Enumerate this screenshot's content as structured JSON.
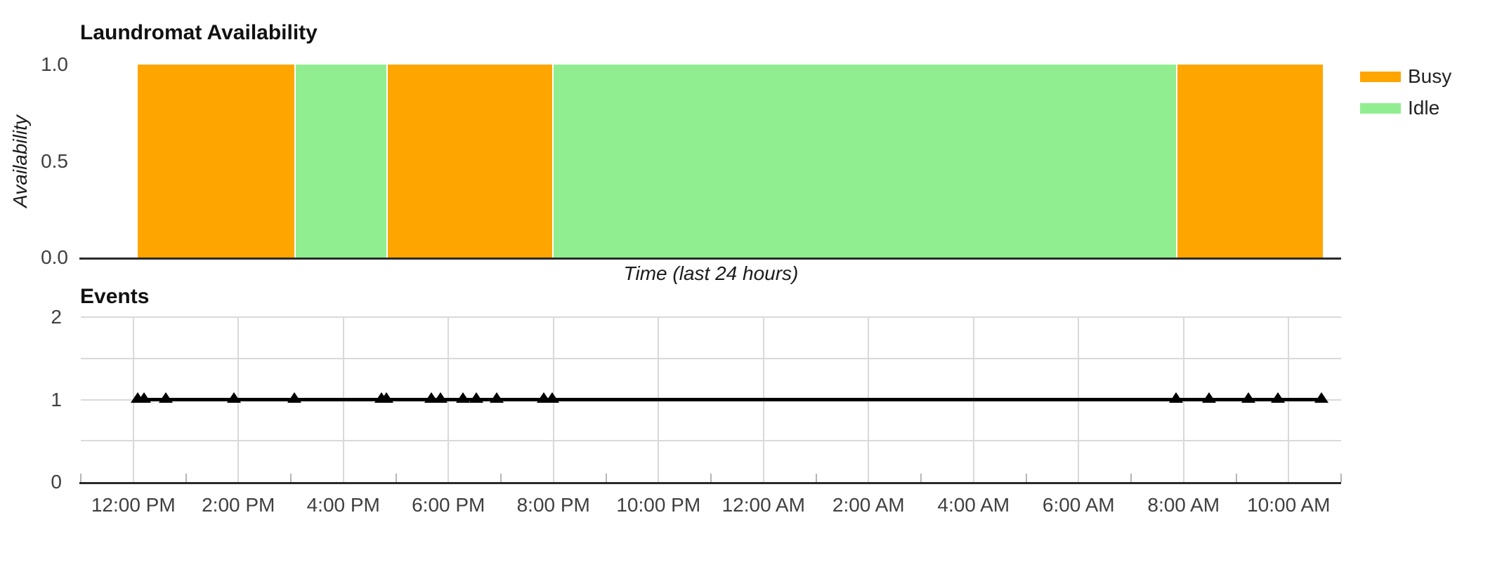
{
  "page": {
    "background": "#ffffff",
    "description": "Two stacked time-series charts for a laundromat over the last 24 hours"
  },
  "colors": {
    "busy": "#FFA500",
    "idle": "#90EE90",
    "series_line": "#000000",
    "axis": "#2a2a2a",
    "gridline": "#d9d9d9",
    "tick_text": "#3f3f3f"
  },
  "chart_data": [
    {
      "type": "area",
      "title": "Laundromat Availability",
      "ylabel": "Availability",
      "xlabel": "Time (last 24 hours)",
      "ylim": [
        0.0,
        1.0
      ],
      "yticks": [
        {
          "label": "1.0",
          "value": 1.0
        },
        {
          "label": "0.5",
          "value": 0.5
        },
        {
          "label": "0.0",
          "value": 0.0
        }
      ],
      "x_domain_hours": [
        11.0,
        35.0
      ],
      "grid": false,
      "legend_position": "right-top",
      "legend": [
        {
          "label": "Busy",
          "color": "#FFA500"
        },
        {
          "label": "Idle",
          "color": "#90EE90"
        }
      ],
      "segments": [
        {
          "state": "Busy",
          "value": 1,
          "start_hour": 12.08,
          "end_hour": 15.07,
          "start_label": "12:05 PM",
          "end_label": "3:04 PM"
        },
        {
          "state": "Idle",
          "value": 1,
          "start_hour": 15.07,
          "end_hour": 16.82,
          "start_label": "3:04 PM",
          "end_label": "4:49 PM"
        },
        {
          "state": "Busy",
          "value": 1,
          "start_hour": 16.82,
          "end_hour": 19.97,
          "start_label": "4:49 PM",
          "end_label": "7:58 PM"
        },
        {
          "state": "Idle",
          "value": 1,
          "start_hour": 19.97,
          "end_hour": 31.85,
          "start_label": "7:58 PM",
          "end_label": "7:51 AM"
        },
        {
          "state": "Busy",
          "value": 1,
          "start_hour": 31.85,
          "end_hour": 34.62,
          "start_label": "7:51 AM",
          "end_label": "10:37 AM"
        }
      ]
    },
    {
      "type": "line",
      "title": "Events",
      "ylim": [
        0,
        2
      ],
      "yticks": [
        {
          "label": "2",
          "value": 2
        },
        {
          "label": "1",
          "value": 1
        },
        {
          "label": "0",
          "value": 0
        }
      ],
      "x_domain_hours": [
        11.0,
        35.0
      ],
      "grid": true,
      "grid_y_values": [
        0.5,
        1.0,
        1.5,
        2.0
      ],
      "xticks": [
        {
          "label": "12:00 PM",
          "hour": 12
        },
        {
          "label": "2:00 PM",
          "hour": 14
        },
        {
          "label": "4:00 PM",
          "hour": 16
        },
        {
          "label": "6:00 PM",
          "hour": 18
        },
        {
          "label": "8:00 PM",
          "hour": 20
        },
        {
          "label": "10:00 PM",
          "hour": 22
        },
        {
          "label": "12:00 AM",
          "hour": 24
        },
        {
          "label": "2:00 AM",
          "hour": 26
        },
        {
          "label": "4:00 AM",
          "hour": 28
        },
        {
          "label": "6:00 AM",
          "hour": 30
        },
        {
          "label": "8:00 AM",
          "hour": 32
        },
        {
          "label": "10:00 AM",
          "hour": 34
        }
      ],
      "minor_tick_hours": [
        11,
        13,
        15,
        17,
        19,
        21,
        23,
        25,
        27,
        29,
        31,
        33,
        35
      ],
      "marker": "triangle-up",
      "line_color": "#000000",
      "series": [
        {
          "name": "events",
          "y_value": 1,
          "points": [
            {
              "hour": 12.08,
              "label": "12:05 PM",
              "value": 1
            },
            {
              "hour": 12.2,
              "label": "12:12 PM",
              "value": 1
            },
            {
              "hour": 12.62,
              "label": "12:37 PM",
              "value": 1
            },
            {
              "hour": 13.92,
              "label": "1:55 PM",
              "value": 1
            },
            {
              "hour": 15.07,
              "label": "3:04 PM",
              "value": 1
            },
            {
              "hour": 16.72,
              "label": "4:43 PM",
              "value": 1
            },
            {
              "hour": 16.82,
              "label": "4:49 PM",
              "value": 1
            },
            {
              "hour": 17.68,
              "label": "5:41 PM",
              "value": 1
            },
            {
              "hour": 17.85,
              "label": "5:51 PM",
              "value": 1
            },
            {
              "hour": 18.28,
              "label": "6:17 PM",
              "value": 1
            },
            {
              "hour": 18.53,
              "label": "6:32 PM",
              "value": 1
            },
            {
              "hour": 18.92,
              "label": "6:55 PM",
              "value": 1
            },
            {
              "hour": 19.82,
              "label": "7:49 PM",
              "value": 1
            },
            {
              "hour": 19.97,
              "label": "7:58 PM",
              "value": 1
            },
            {
              "hour": 31.85,
              "label": "7:51 AM",
              "value": 1
            },
            {
              "hour": 32.48,
              "label": "8:29 AM",
              "value": 1
            },
            {
              "hour": 33.23,
              "label": "9:14 AM",
              "value": 1
            },
            {
              "hour": 33.8,
              "label": "9:48 AM",
              "value": 1
            },
            {
              "hour": 34.62,
              "label": "10:37 AM",
              "value": 1
            }
          ]
        }
      ]
    }
  ]
}
